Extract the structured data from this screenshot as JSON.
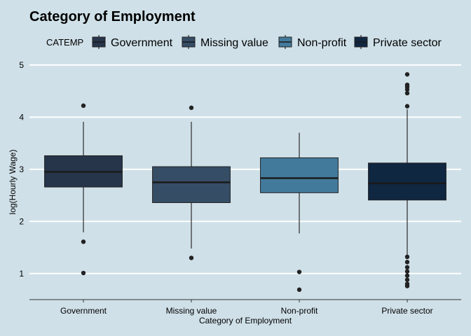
{
  "chart_data": {
    "type": "box",
    "title": "Category of Employment",
    "xlabel": "Category of Employment",
    "ylabel": "log(Hourly Wage)",
    "ylim": [
      0.5,
      5.2
    ],
    "yticks": [
      1,
      2,
      3,
      4,
      5
    ],
    "grid": "horizontal",
    "legend": {
      "title": "CATEMP",
      "position": "top"
    },
    "categories": [
      "Government",
      "Missing value",
      "Non-profit",
      "Private sector"
    ],
    "series": [
      {
        "name": "Government",
        "color": "#263549",
        "whisker_low": 1.79,
        "q1": 2.66,
        "median": 2.95,
        "q3": 3.26,
        "whisker_high": 3.91,
        "outliers": [
          1.01,
          1.61,
          4.22
        ]
      },
      {
        "name": "Missing value",
        "color": "#364d66",
        "whisker_low": 1.48,
        "q1": 2.36,
        "median": 2.75,
        "q3": 3.05,
        "whisker_high": 3.91,
        "outliers": [
          1.3,
          4.18
        ]
      },
      {
        "name": "Non-profit",
        "color": "#427a9c",
        "whisker_low": 1.77,
        "q1": 2.55,
        "median": 2.83,
        "q3": 3.22,
        "whisker_high": 3.7,
        "outliers": [
          0.69,
          1.03
        ]
      },
      {
        "name": "Private sector",
        "color": "#102742",
        "whisker_low": 1.35,
        "q1": 2.41,
        "median": 2.73,
        "q3": 3.12,
        "whisker_high": 4.15,
        "outliers": [
          0.76,
          0.8,
          0.88,
          0.96,
          1.04,
          1.12,
          1.22,
          1.32,
          4.21,
          4.46,
          4.53,
          4.58,
          4.62,
          4.82
        ]
      }
    ]
  }
}
